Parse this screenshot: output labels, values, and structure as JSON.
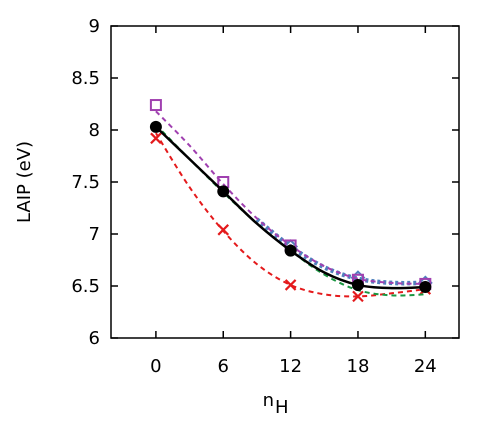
{
  "chart_data": {
    "type": "line",
    "xlabel": "n",
    "xlabel_subscript": "H",
    "ylabel": "LAIP (eV)",
    "xlim": [
      -4,
      27
    ],
    "ylim": [
      6,
      9
    ],
    "x_ticks": [
      0,
      6,
      12,
      18,
      24
    ],
    "x_tick_labels": [
      "0",
      "6",
      "12",
      "18",
      "24"
    ],
    "y_ticks": [
      6,
      6.5,
      7,
      7.5,
      8,
      8.5,
      9
    ],
    "y_tick_labels": [
      "6",
      "6.5",
      "7",
      "7.5",
      "8",
      "8.5",
      "9"
    ],
    "grid": false,
    "series": [
      {
        "color": "#e41a1c",
        "marker": "x",
        "line": "dashed",
        "x": [
          0,
          6,
          12,
          18,
          24
        ],
        "y": [
          7.92,
          7.04,
          6.51,
          6.4,
          6.47
        ],
        "fit": [
          [
            0,
            7.97
          ],
          [
            3,
            7.45
          ],
          [
            6,
            7.03
          ],
          [
            9,
            6.71
          ],
          [
            12,
            6.51
          ],
          [
            15,
            6.42
          ],
          [
            18,
            6.4
          ],
          [
            21,
            6.43
          ],
          [
            24,
            6.47
          ]
        ]
      },
      {
        "color": "#1a9641",
        "marker": "none",
        "line": "dashed",
        "x": [],
        "y": [],
        "fit": [
          [
            0,
            8.05
          ],
          [
            3,
            7.72
          ],
          [
            6,
            7.4
          ],
          [
            9,
            7.1
          ],
          [
            12,
            6.84
          ],
          [
            15,
            6.61
          ],
          [
            18,
            6.46
          ],
          [
            21,
            6.41
          ],
          [
            24,
            6.42
          ]
        ]
      },
      {
        "color": "#4f81bd",
        "marker": "diamond",
        "line": "dotted",
        "x": [
          12,
          18,
          24
        ],
        "y": [
          6.88,
          6.58,
          6.53
        ],
        "fit": [
          [
            9,
            7.14
          ],
          [
            12,
            6.88
          ],
          [
            15,
            6.68
          ],
          [
            18,
            6.57
          ],
          [
            21,
            6.53
          ],
          [
            24,
            6.53
          ]
        ]
      },
      {
        "color": "#a040b0",
        "marker": "open-square",
        "line": "dashed",
        "x": [
          0,
          6,
          12,
          18,
          24
        ],
        "y": [
          8.24,
          7.5,
          6.89,
          6.56,
          6.52
        ],
        "fit": [
          [
            0,
            8.18
          ],
          [
            3,
            7.85
          ],
          [
            6,
            7.48
          ],
          [
            9,
            7.15
          ],
          [
            12,
            6.89
          ],
          [
            15,
            6.69
          ],
          [
            18,
            6.57
          ],
          [
            21,
            6.53
          ],
          [
            24,
            6.52
          ]
        ]
      },
      {
        "color": "#000000",
        "marker": "filled-circle",
        "line": "solid",
        "x": [
          0,
          6,
          12,
          18,
          24
        ],
        "y": [
          8.03,
          7.41,
          6.84,
          6.51,
          6.49
        ],
        "fit": [
          [
            0,
            8.03
          ],
          [
            3,
            7.72
          ],
          [
            6,
            7.41
          ],
          [
            9,
            7.1
          ],
          [
            12,
            6.84
          ],
          [
            15,
            6.63
          ],
          [
            18,
            6.51
          ],
          [
            21,
            6.48
          ],
          [
            24,
            6.49
          ]
        ]
      }
    ]
  }
}
